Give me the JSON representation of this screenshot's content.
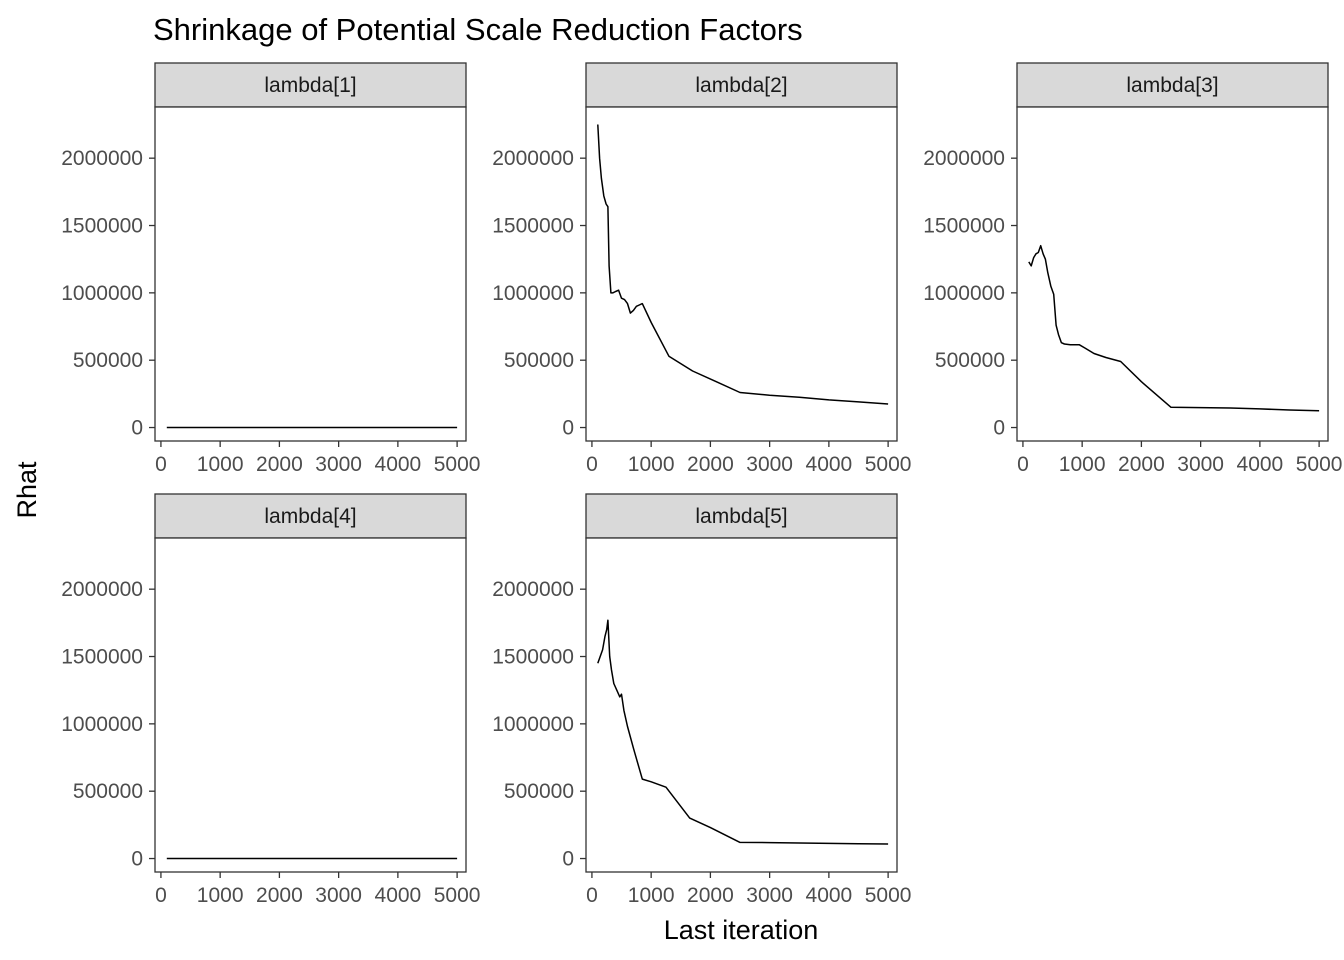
{
  "chart_data": {
    "type": "line",
    "title": "Shrinkage of Potential Scale Reduction Factors",
    "xlabel": "Last iteration",
    "ylabel": "Rhat",
    "xlim": [
      -100,
      5150
    ],
    "ylim": [
      -100000,
      2380000
    ],
    "x_ticks": [
      0,
      1000,
      2000,
      3000,
      4000,
      5000
    ],
    "y_ticks": [
      0,
      500000,
      1000000,
      1500000,
      2000000
    ],
    "grid": false,
    "legend": "none",
    "facets": [
      {
        "label": "lambda[1]",
        "x": [
          100,
          200,
          400,
          600,
          800,
          1000,
          1500,
          2000,
          2500,
          3000,
          3500,
          4000,
          4500,
          5000
        ],
        "y": [
          1,
          1,
          1,
          1,
          1,
          1,
          1,
          1,
          1,
          1,
          1,
          1,
          1,
          1
        ]
      },
      {
        "label": "lambda[2]",
        "x": [
          100,
          130,
          160,
          200,
          240,
          270,
          290,
          320,
          350,
          400,
          450,
          500,
          550,
          600,
          650,
          700,
          750,
          800,
          850,
          1000,
          1300,
          1700,
          2100,
          2500,
          3000,
          3500,
          4000,
          4500,
          5000
        ],
        "y": [
          2250000,
          2000000,
          1850000,
          1720000,
          1660000,
          1640000,
          1200000,
          1000000,
          1000000,
          1010000,
          1020000,
          960000,
          950000,
          920000,
          850000,
          870000,
          900000,
          910000,
          920000,
          780000,
          530000,
          420000,
          340000,
          260000,
          240000,
          225000,
          205000,
          190000,
          175000
        ]
      },
      {
        "label": "lambda[3]",
        "x": [
          100,
          140,
          180,
          220,
          260,
          300,
          340,
          380,
          420,
          470,
          520,
          560,
          600,
          650,
          700,
          800,
          950,
          1050,
          1200,
          1400,
          1650,
          2000,
          2500,
          3000,
          3500,
          4000,
          4500,
          5000
        ],
        "y": [
          1230000,
          1200000,
          1260000,
          1290000,
          1300000,
          1350000,
          1290000,
          1250000,
          1150000,
          1050000,
          990000,
          760000,
          690000,
          630000,
          620000,
          615000,
          615000,
          590000,
          550000,
          520000,
          490000,
          340000,
          150000,
          148000,
          145000,
          138000,
          130000,
          125000
        ]
      },
      {
        "label": "lambda[4]",
        "x": [
          100,
          200,
          400,
          600,
          800,
          1000,
          1500,
          2000,
          2500,
          3000,
          3500,
          4000,
          4500,
          5000
        ],
        "y": [
          1,
          1,
          1,
          1,
          1,
          1,
          1,
          1,
          1,
          1,
          1,
          1,
          1,
          1
        ]
      },
      {
        "label": "lambda[5]",
        "x": [
          100,
          140,
          180,
          220,
          250,
          270,
          300,
          330,
          370,
          420,
          470,
          500,
          540,
          600,
          700,
          850,
          1000,
          1250,
          1650,
          2000,
          2500,
          3000,
          3500,
          4000,
          4500,
          5000
        ],
        "y": [
          1450000,
          1500000,
          1550000,
          1650000,
          1700000,
          1770000,
          1500000,
          1400000,
          1300000,
          1250000,
          1200000,
          1220000,
          1100000,
          980000,
          820000,
          590000,
          570000,
          530000,
          300000,
          230000,
          120000,
          118000,
          115000,
          112000,
          110000,
          108000
        ]
      }
    ]
  }
}
